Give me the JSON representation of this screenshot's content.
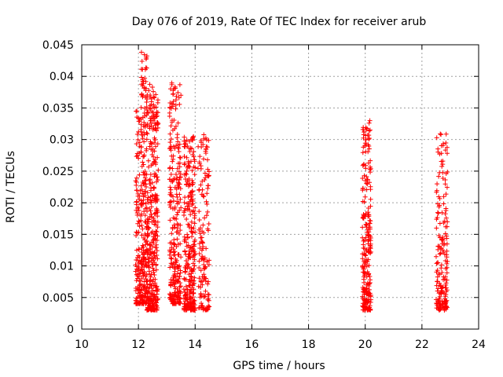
{
  "chart_data": {
    "type": "scatter",
    "title": "Day 076 of 2019, Rate Of TEC Index for receiver arub",
    "xlabel": "GPS time / hours",
    "ylabel": "ROTI / TECUs",
    "xlim": [
      10,
      24
    ],
    "ylim": [
      0,
      0.045
    ],
    "x_ticks": [
      10,
      12,
      14,
      16,
      18,
      20,
      22,
      24
    ],
    "x_tick_labels": [
      "10",
      "12",
      "14",
      "16",
      "18",
      "20",
      "22",
      "24"
    ],
    "y_ticks": [
      0,
      0.005,
      0.01,
      0.015,
      0.02,
      0.025,
      0.03,
      0.035,
      0.04,
      0.045
    ],
    "y_tick_labels": [
      "0",
      "0.005",
      "0.01",
      "0.015",
      "0.02",
      "0.025",
      "0.03",
      "0.035",
      "0.04",
      "0.045"
    ],
    "grid": true,
    "marker": "plus",
    "color": "#ff0000",
    "series": [
      {
        "name": "ROTI",
        "clusters": [
          {
            "x_range": [
              11.9,
              12.1
            ],
            "y_range": [
              0.004,
              0.036
            ],
            "count": 130
          },
          {
            "x_range": [
              12.1,
              12.3
            ],
            "y_range": [
              0.004,
              0.044
            ],
            "count": 190
          },
          {
            "x_range": [
              12.3,
              12.7
            ],
            "y_range": [
              0.003,
              0.039
            ],
            "count": 360
          },
          {
            "x_range": [
              13.1,
              13.5
            ],
            "y_range": [
              0.004,
              0.039
            ],
            "count": 270
          },
          {
            "x_range": [
              13.6,
              14.0
            ],
            "y_range": [
              0.003,
              0.031
            ],
            "count": 290
          },
          {
            "x_range": [
              14.1,
              14.5
            ],
            "y_range": [
              0.003,
              0.031
            ],
            "count": 140
          },
          {
            "x_range": [
              19.9,
              20.2
            ],
            "y_range": [
              0.003,
              0.033
            ],
            "count": 240
          },
          {
            "x_range": [
              22.5,
              22.9
            ],
            "y_range": [
              0.003,
              0.031
            ],
            "count": 180
          }
        ]
      }
    ]
  }
}
